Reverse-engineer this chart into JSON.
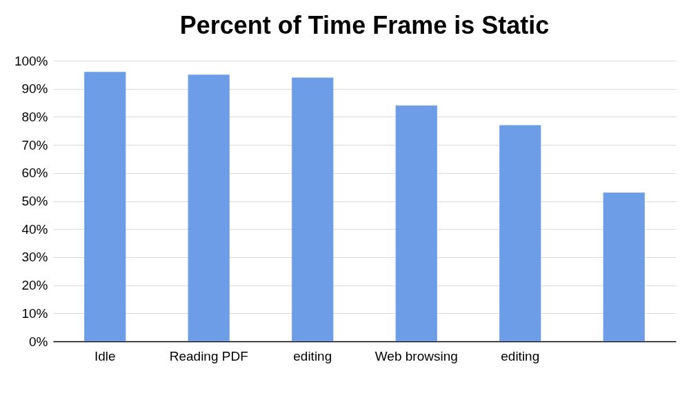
{
  "chart_data": {
    "type": "bar",
    "title": "Percent of Time Frame is Static",
    "categories": [
      "Idle",
      "Reading PDF",
      "editing",
      "Web browsing",
      "editing",
      null
    ],
    "values": [
      96,
      95,
      94,
      84,
      77,
      53
    ],
    "color": "#6c9de6",
    "ylim": [
      0,
      100
    ],
    "yticks": [
      {
        "value": 0,
        "label": "0%"
      },
      {
        "value": 10,
        "label": "10%"
      },
      {
        "value": 20,
        "label": "20%"
      },
      {
        "value": 30,
        "label": "30%"
      },
      {
        "value": 40,
        "label": "40%"
      },
      {
        "value": 50,
        "label": "50%"
      },
      {
        "value": 60,
        "label": "60%"
      },
      {
        "value": 70,
        "label": "70%"
      },
      {
        "value": 80,
        "label": "80%"
      },
      {
        "value": 90,
        "label": "90%"
      },
      {
        "value": 100,
        "label": "100%"
      }
    ],
    "grid": "y"
  }
}
